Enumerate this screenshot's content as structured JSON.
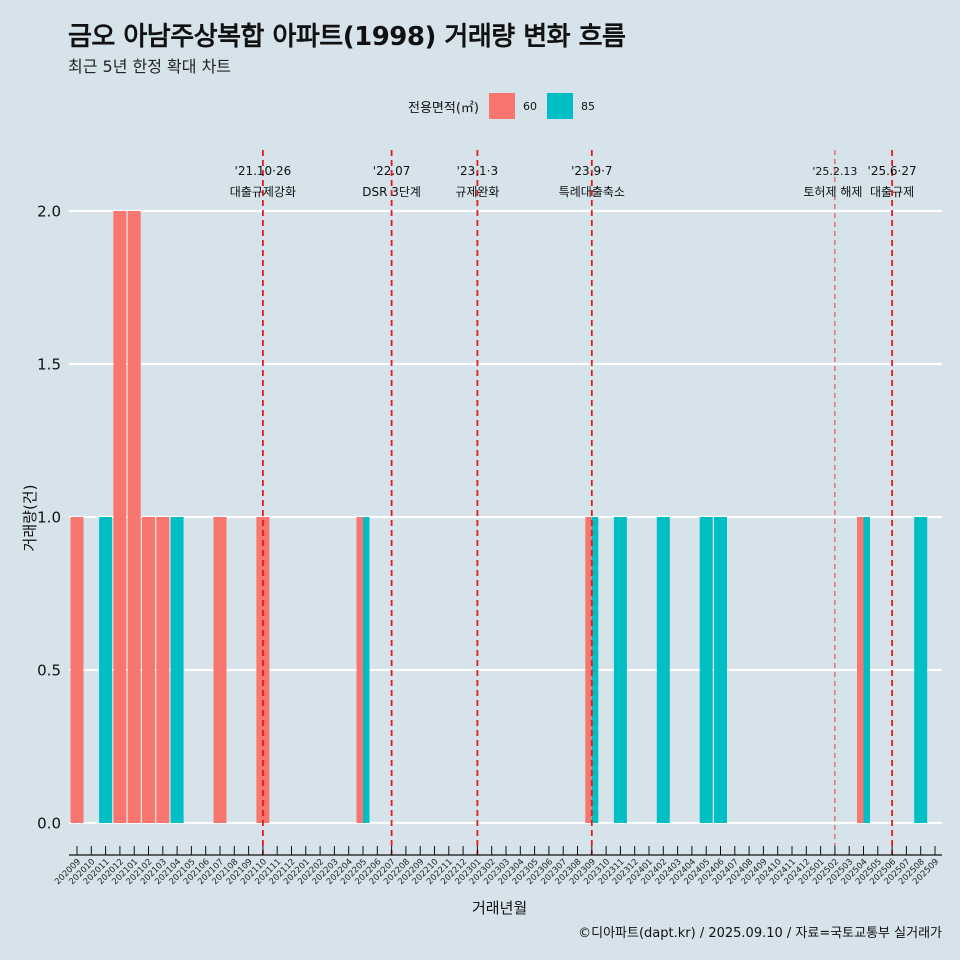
{
  "title": "금오 아남주상복합 아파트(1998) 거래량 변화 흐름",
  "subtitle": "최근 5년 한정 확대 차트",
  "caption": "©디아파트(dapt.kr) / 2025.09.10 / 자료=국토교통부 실거래가",
  "chart_data": {
    "type": "bar",
    "title": "금오 아남주상복합 아파트(1998) 거래량 변화 흐름",
    "subtitle": "최근 5년 한정 확대 차트",
    "xlabel": "거래년월",
    "ylabel": "거래량(건)",
    "ylim": [
      0,
      2
    ],
    "yticks": [
      "0.0",
      "0.5",
      "1.0",
      "1.5",
      "2.0"
    ],
    "ytick_values": [
      0,
      0.5,
      1.0,
      1.5,
      2.0
    ],
    "grid": true,
    "legend": {
      "title": "전용면적(㎡)",
      "position": "top",
      "entries": [
        {
          "label": "60",
          "color": "#f8766d"
        },
        {
          "label": "85",
          "color": "#00bfc4"
        }
      ]
    },
    "categories": [
      "202009",
      "202010",
      "202011",
      "202012",
      "202101",
      "202102",
      "202103",
      "202104",
      "202105",
      "202106",
      "202107",
      "202108",
      "202109",
      "202110",
      "202111",
      "202112",
      "202201",
      "202202",
      "202203",
      "202204",
      "202205",
      "202206",
      "202207",
      "202208",
      "202209",
      "202210",
      "202211",
      "202212",
      "202301",
      "202302",
      "202303",
      "202304",
      "202305",
      "202306",
      "202307",
      "202308",
      "202309",
      "202310",
      "202311",
      "202312",
      "202401",
      "202402",
      "202403",
      "202404",
      "202405",
      "202406",
      "202407",
      "202408",
      "202409",
      "202410",
      "202411",
      "202412",
      "202501",
      "202502",
      "202503",
      "202504",
      "202505",
      "202506",
      "202507",
      "202508",
      "202509"
    ],
    "series": [
      {
        "name": "60",
        "color": "#f8766d",
        "points": [
          {
            "x": "202009",
            "y": 1
          },
          {
            "x": "202012",
            "y": 2
          },
          {
            "x": "202101",
            "y": 2
          },
          {
            "x": "202102",
            "y": 1
          },
          {
            "x": "202103",
            "y": 1
          },
          {
            "x": "202107",
            "y": 1
          },
          {
            "x": "202110",
            "y": 1
          },
          {
            "x": "202205",
            "y": 1
          },
          {
            "x": "202309",
            "y": 1
          },
          {
            "x": "202504",
            "y": 1
          }
        ]
      },
      {
        "name": "85",
        "color": "#00bfc4",
        "points": [
          {
            "x": "202011",
            "y": 1
          },
          {
            "x": "202104",
            "y": 1
          },
          {
            "x": "202205",
            "y": 1
          },
          {
            "x": "202309",
            "y": 1
          },
          {
            "x": "202311",
            "y": 1
          },
          {
            "x": "202402",
            "y": 1
          },
          {
            "x": "202405",
            "y": 1
          },
          {
            "x": "202406",
            "y": 1
          },
          {
            "x": "202504",
            "y": 1
          },
          {
            "x": "202508",
            "y": 1
          }
        ]
      }
    ],
    "annotations": [
      {
        "x": "202110",
        "date": "'21.10·26",
        "label": "대출규제강화",
        "style": "bold"
      },
      {
        "x": "202207",
        "date": "'22.07",
        "label": "DSR 3단계",
        "style": "bold"
      },
      {
        "x": "202301",
        "date": "'23.1·3",
        "label": "규제완화",
        "style": "bold"
      },
      {
        "x": "202309",
        "date": "'23.9·7",
        "label": "특례대출축소",
        "style": "bold"
      },
      {
        "x": "202502",
        "date": "'25.2.13",
        "label": "토허제 해제",
        "style": "thin"
      },
      {
        "x": "202506",
        "date": "'25.6·27",
        "label": "대출규제",
        "style": "bold"
      }
    ],
    "annotation_color": "#e41a1c"
  }
}
